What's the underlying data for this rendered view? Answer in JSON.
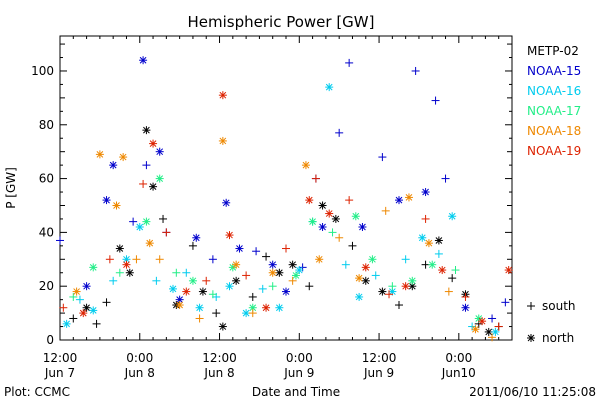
{
  "chart_data": {
    "type": "scatter",
    "title": "Hemispheric Power [GW]",
    "ylabel": "P [GW]",
    "xlabel": "Date and Time",
    "ylim": [
      0,
      113
    ],
    "xlim": [
      "2011-06-07 12:00",
      "2011-06-10 08:00"
    ],
    "y_ticks": [
      0,
      20,
      40,
      60,
      80,
      100
    ],
    "x_ticks": [
      {
        "t": "2011-06-07 12:00",
        "time": "12:00",
        "date": "Jun 7"
      },
      {
        "t": "2011-06-08 00:00",
        "time": "0:00",
        "date": "Jun 8"
      },
      {
        "t": "2011-06-08 12:00",
        "time": "12:00",
        "date": "Jun 8"
      },
      {
        "t": "2011-06-09 00:00",
        "time": "0:00",
        "date": "Jun 9"
      },
      {
        "t": "2011-06-09 12:00",
        "time": "12:00",
        "date": "Jun 9"
      },
      {
        "t": "2011-06-10 00:00",
        "time": "0:00",
        "date": "Jun10"
      }
    ],
    "marker_legend": [
      {
        "symbol": "+",
        "label": "south"
      },
      {
        "symbol": "*",
        "label": "north"
      }
    ],
    "series": [
      {
        "name": "METP-02",
        "color": "#000000",
        "points": [
          [
            "2011-06-07 14:00",
            8,
            "+"
          ],
          [
            "2011-06-07 16:00",
            12,
            "*"
          ],
          [
            "2011-06-07 17:30",
            6,
            "+"
          ],
          [
            "2011-06-07 19:00",
            14,
            "+"
          ],
          [
            "2011-06-07 21:00",
            34,
            "*"
          ],
          [
            "2011-06-07 22:30",
            25,
            "*"
          ],
          [
            "2011-06-08 01:00",
            78,
            "*"
          ],
          [
            "2011-06-08 02:00",
            57,
            "*"
          ],
          [
            "2011-06-08 03:30",
            45,
            "+"
          ],
          [
            "2011-06-08 05:30",
            13,
            "*"
          ],
          [
            "2011-06-08 08:00",
            35,
            "+"
          ],
          [
            "2011-06-08 09:30",
            18,
            "*"
          ],
          [
            "2011-06-08 11:30",
            10,
            "+"
          ],
          [
            "2011-06-08 12:30",
            5,
            "*"
          ],
          [
            "2011-06-08 14:30",
            22,
            "*"
          ],
          [
            "2011-06-08 17:00",
            16,
            "+"
          ],
          [
            "2011-06-08 19:00",
            31,
            "+"
          ],
          [
            "2011-06-08 21:00",
            25,
            "*"
          ],
          [
            "2011-06-08 23:00",
            28,
            "*"
          ],
          [
            "2011-06-09 01:30",
            20,
            "+"
          ],
          [
            "2011-06-09 03:30",
            50,
            "*"
          ],
          [
            "2011-06-09 05:30",
            45,
            "*"
          ],
          [
            "2011-06-09 08:00",
            35,
            "+"
          ],
          [
            "2011-06-09 10:00",
            22,
            "*"
          ],
          [
            "2011-06-09 12:30",
            18,
            "*"
          ],
          [
            "2011-06-09 15:00",
            13,
            "+"
          ],
          [
            "2011-06-09 17:00",
            20,
            "*"
          ],
          [
            "2011-06-09 19:00",
            28,
            "+"
          ],
          [
            "2011-06-09 21:00",
            37,
            "*"
          ],
          [
            "2011-06-09 23:00",
            23,
            "+"
          ],
          [
            "2011-06-10 01:00",
            17,
            "*"
          ],
          [
            "2011-06-10 03:00",
            6,
            "+"
          ],
          [
            "2011-06-10 04:30",
            3,
            "*"
          ],
          [
            "2011-06-10 06:00",
            5,
            "+"
          ]
        ]
      },
      {
        "name": "NOAA-15",
        "color": "#0000cc",
        "points": [
          [
            "2011-06-07 12:00",
            37,
            "+"
          ],
          [
            "2011-06-07 16:00",
            20,
            "*"
          ],
          [
            "2011-06-07 19:00",
            52,
            "*"
          ],
          [
            "2011-06-07 20:00",
            65,
            "*"
          ],
          [
            "2011-06-07 23:00",
            44,
            "+"
          ],
          [
            "2011-06-08 00:30",
            104,
            "*"
          ],
          [
            "2011-06-08 01:00",
            65,
            "+"
          ],
          [
            "2011-06-08 03:00",
            70,
            "*"
          ],
          [
            "2011-06-08 04:00",
            40,
            "+"
          ],
          [
            "2011-06-08 06:00",
            15,
            "*"
          ],
          [
            "2011-06-08 08:30",
            38,
            "*"
          ],
          [
            "2011-06-08 11:00",
            30,
            "+"
          ],
          [
            "2011-06-08 13:00",
            51,
            "*"
          ],
          [
            "2011-06-08 15:00",
            34,
            "*"
          ],
          [
            "2011-06-08 17:30",
            33,
            "+"
          ],
          [
            "2011-06-08 20:00",
            28,
            "*"
          ],
          [
            "2011-06-08 22:00",
            18,
            "*"
          ],
          [
            "2011-06-09 00:30",
            27,
            "+"
          ],
          [
            "2011-06-09 02:30",
            60,
            "+"
          ],
          [
            "2011-06-09 03:30",
            42,
            "*"
          ],
          [
            "2011-06-09 06:00",
            77,
            "+"
          ],
          [
            "2011-06-09 07:30",
            103,
            "+"
          ],
          [
            "2011-06-09 09:30",
            42,
            "*"
          ],
          [
            "2011-06-09 12:30",
            68,
            "+"
          ],
          [
            "2011-06-09 15:00",
            52,
            "*"
          ],
          [
            "2011-06-09 17:30",
            100,
            "+"
          ],
          [
            "2011-06-09 19:00",
            55,
            "*"
          ],
          [
            "2011-06-09 20:30",
            89,
            "+"
          ],
          [
            "2011-06-09 22:00",
            60,
            "+"
          ],
          [
            "2011-06-10 01:00",
            12,
            "*"
          ],
          [
            "2011-06-10 05:00",
            8,
            "+"
          ],
          [
            "2011-06-10 07:00",
            14,
            "+"
          ]
        ]
      },
      {
        "name": "NOAA-16",
        "color": "#00ccee",
        "points": [
          [
            "2011-06-07 13:00",
            6,
            "*"
          ],
          [
            "2011-06-07 15:00",
            15,
            "+"
          ],
          [
            "2011-06-07 17:00",
            11,
            "*"
          ],
          [
            "2011-06-07 20:00",
            22,
            "+"
          ],
          [
            "2011-06-07 22:00",
            30,
            "*"
          ],
          [
            "2011-06-08 00:00",
            42,
            "*"
          ],
          [
            "2011-06-08 02:30",
            22,
            "+"
          ],
          [
            "2011-06-08 05:00",
            19,
            "*"
          ],
          [
            "2011-06-08 07:00",
            25,
            "+"
          ],
          [
            "2011-06-08 09:00",
            12,
            "*"
          ],
          [
            "2011-06-08 11:30",
            16,
            "+"
          ],
          [
            "2011-06-08 13:30",
            20,
            "*"
          ],
          [
            "2011-06-08 16:00",
            10,
            "*"
          ],
          [
            "2011-06-08 18:30",
            19,
            "+"
          ],
          [
            "2011-06-08 21:00",
            12,
            "*"
          ],
          [
            "2011-06-09 00:00",
            26,
            "*"
          ],
          [
            "2011-06-09 02:00",
            44,
            "+"
          ],
          [
            "2011-06-09 04:30",
            94,
            "*"
          ],
          [
            "2011-06-09 07:00",
            28,
            "+"
          ],
          [
            "2011-06-09 09:00",
            16,
            "*"
          ],
          [
            "2011-06-09 11:30",
            24,
            "+"
          ],
          [
            "2011-06-09 14:00",
            18,
            "*"
          ],
          [
            "2011-06-09 16:00",
            30,
            "+"
          ],
          [
            "2011-06-09 18:30",
            38,
            "*"
          ],
          [
            "2011-06-09 21:00",
            32,
            "+"
          ],
          [
            "2011-06-09 23:00",
            46,
            "*"
          ],
          [
            "2011-06-10 02:00",
            5,
            "+"
          ],
          [
            "2011-06-10 05:30",
            3,
            "*"
          ]
        ]
      },
      {
        "name": "NOAA-17",
        "color": "#22ee88",
        "points": [
          [
            "2011-06-07 14:00",
            16,
            "+"
          ],
          [
            "2011-06-07 17:00",
            27,
            "*"
          ],
          [
            "2011-06-07 21:00",
            25,
            "+"
          ],
          [
            "2011-06-08 01:00",
            44,
            "*"
          ],
          [
            "2011-06-08 03:00",
            60,
            "*"
          ],
          [
            "2011-06-08 05:30",
            25,
            "+"
          ],
          [
            "2011-06-08 08:00",
            22,
            "*"
          ],
          [
            "2011-06-08 11:00",
            17,
            "+"
          ],
          [
            "2011-06-08 14:00",
            27,
            "*"
          ],
          [
            "2011-06-08 17:00",
            12,
            "*"
          ],
          [
            "2011-06-08 20:00",
            20,
            "+"
          ],
          [
            "2011-06-08 23:30",
            24,
            "*"
          ],
          [
            "2011-06-09 02:00",
            44,
            "*"
          ],
          [
            "2011-06-09 05:00",
            40,
            "+"
          ],
          [
            "2011-06-09 08:30",
            46,
            "*"
          ],
          [
            "2011-06-09 11:00",
            30,
            "*"
          ],
          [
            "2011-06-09 14:00",
            20,
            "+"
          ],
          [
            "2011-06-09 17:00",
            22,
            "*"
          ],
          [
            "2011-06-09 20:00",
            28,
            "*"
          ],
          [
            "2011-06-09 23:30",
            26,
            "+"
          ],
          [
            "2011-06-10 03:00",
            8,
            "*"
          ]
        ]
      },
      {
        "name": "NOAA-18",
        "color": "#ee8800",
        "points": [
          [
            "2011-06-07 14:30",
            18,
            "*"
          ],
          [
            "2011-06-07 18:00",
            69,
            "*"
          ],
          [
            "2011-06-07 20:30",
            50,
            "*"
          ],
          [
            "2011-06-07 21:30",
            68,
            "*"
          ],
          [
            "2011-06-07 23:30",
            30,
            "+"
          ],
          [
            "2011-06-08 01:30",
            36,
            "*"
          ],
          [
            "2011-06-08 03:00",
            30,
            "+"
          ],
          [
            "2011-06-08 06:00",
            13,
            "*"
          ],
          [
            "2011-06-08 09:00",
            8,
            "+"
          ],
          [
            "2011-06-08 12:30",
            74,
            "*"
          ],
          [
            "2011-06-08 14:30",
            28,
            "*"
          ],
          [
            "2011-06-08 17:00",
            10,
            "+"
          ],
          [
            "2011-06-08 20:00",
            25,
            "*"
          ],
          [
            "2011-06-08 23:00",
            22,
            "+"
          ],
          [
            "2011-06-09 01:00",
            65,
            "*"
          ],
          [
            "2011-06-09 03:00",
            30,
            "*"
          ],
          [
            "2011-06-09 06:00",
            38,
            "+"
          ],
          [
            "2011-06-09 09:00",
            23,
            "*"
          ],
          [
            "2011-06-09 13:00",
            48,
            "+"
          ],
          [
            "2011-06-09 16:30",
            53,
            "*"
          ],
          [
            "2011-06-09 19:30",
            36,
            "*"
          ],
          [
            "2011-06-09 22:30",
            18,
            "+"
          ],
          [
            "2011-06-10 02:30",
            4,
            "*"
          ],
          [
            "2011-06-10 05:00",
            1,
            "+"
          ]
        ]
      },
      {
        "name": "NOAA-19",
        "color": "#dd2200",
        "points": [
          [
            "2011-06-07 12:30",
            12,
            "+"
          ],
          [
            "2011-06-07 15:30",
            10,
            "*"
          ],
          [
            "2011-06-07 19:30",
            30,
            "+"
          ],
          [
            "2011-06-07 22:00",
            28,
            "*"
          ],
          [
            "2011-06-08 00:30",
            58,
            "+"
          ],
          [
            "2011-06-08 02:00",
            73,
            "*"
          ],
          [
            "2011-06-08 04:00",
            40,
            "+"
          ],
          [
            "2011-06-08 07:00",
            18,
            "*"
          ],
          [
            "2011-06-08 10:00",
            22,
            "+"
          ],
          [
            "2011-06-08 12:30",
            91,
            "*"
          ],
          [
            "2011-06-08 13:30",
            39,
            "*"
          ],
          [
            "2011-06-08 16:00",
            24,
            "+"
          ],
          [
            "2011-06-08 19:00",
            12,
            "*"
          ],
          [
            "2011-06-08 22:00",
            34,
            "+"
          ],
          [
            "2011-06-09 01:30",
            52,
            "*"
          ],
          [
            "2011-06-09 02:30",
            60,
            "+"
          ],
          [
            "2011-06-09 04:30",
            47,
            "*"
          ],
          [
            "2011-06-09 07:30",
            52,
            "+"
          ],
          [
            "2011-06-09 10:00",
            27,
            "*"
          ],
          [
            "2011-06-09 13:30",
            17,
            "+"
          ],
          [
            "2011-06-09 16:00",
            20,
            "*"
          ],
          [
            "2011-06-09 19:00",
            45,
            "+"
          ],
          [
            "2011-06-09 21:30",
            26,
            "*"
          ],
          [
            "2011-06-10 01:00",
            16,
            "+"
          ],
          [
            "2011-06-10 03:30",
            7,
            "*"
          ],
          [
            "2011-06-10 06:00",
            5,
            "+"
          ],
          [
            "2011-06-10 07:30",
            26,
            "*"
          ]
        ]
      }
    ]
  },
  "footer": {
    "plot_credit": "Plot: CCMC",
    "timestamp": "2011/06/10 11:25:08"
  }
}
